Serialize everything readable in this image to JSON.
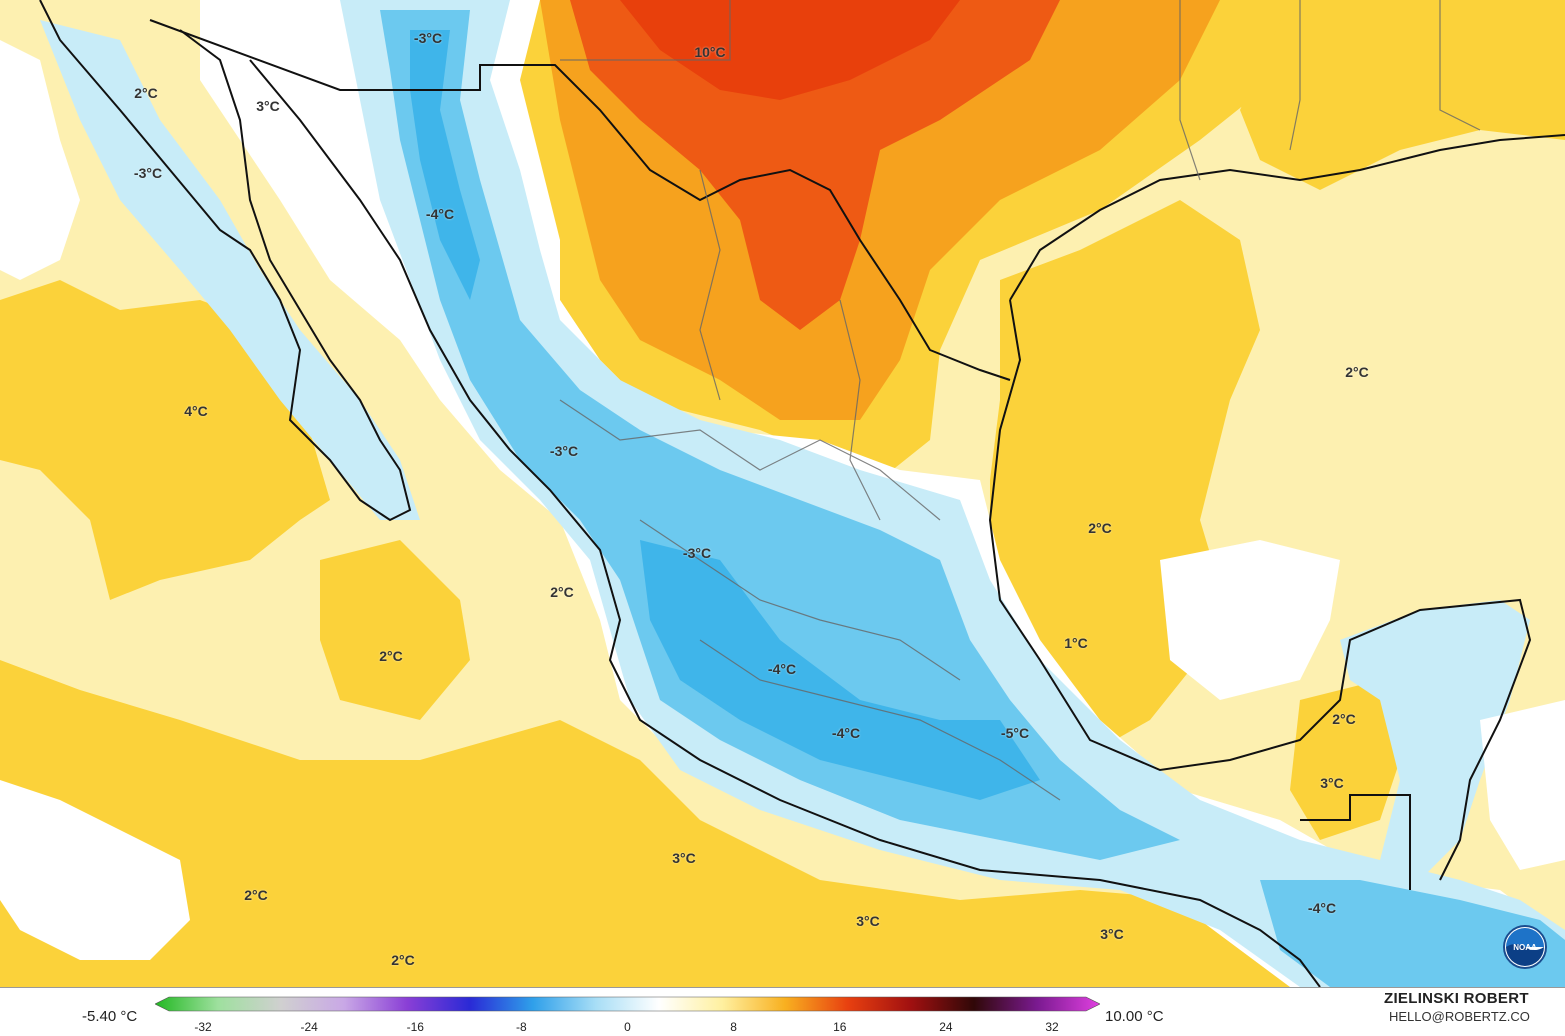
{
  "map": {
    "temperature_labels": [
      {
        "text": "-3°C"
      },
      {
        "text": "10°C"
      },
      {
        "text": "2°C"
      },
      {
        "text": "3°C"
      },
      {
        "text": "-3°C"
      },
      {
        "text": "-4°C"
      },
      {
        "text": "4°C"
      },
      {
        "text": "2°C"
      },
      {
        "text": "-3°C"
      },
      {
        "text": "2°C"
      },
      {
        "text": "-3°C"
      },
      {
        "text": "2°C"
      },
      {
        "text": "1°C"
      },
      {
        "text": "2°C"
      },
      {
        "text": "-4°C"
      },
      {
        "text": "-4°C"
      },
      {
        "text": "-5°C"
      },
      {
        "text": "2°C"
      },
      {
        "text": "3°C"
      },
      {
        "text": "3°C"
      },
      {
        "text": "2°C"
      },
      {
        "text": "3°C"
      },
      {
        "text": "-4°C"
      },
      {
        "text": "3°C"
      },
      {
        "text": "2°C"
      }
    ],
    "colors": {
      "warm_light": "#fdf0b0",
      "warm_yellow": "#fbd23a",
      "warm_orange": "#f6a21e",
      "warm_red": "#ee5a14",
      "cold_white": "#ffffff",
      "cold_light": "#c8ecf8",
      "cold_blue": "#6cc9ef",
      "cold_deep": "#3fb5ea"
    }
  },
  "legend": {
    "min_value": "-5.40 °C",
    "max_value": "10.00 °C",
    "ticks": [
      "-32",
      "-24",
      "-16",
      "-8",
      "0",
      "8",
      "16",
      "24",
      "32"
    ],
    "colorbar_stops": [
      "#22b822",
      "#9ee09e",
      "#d0d0d0",
      "#c9a8e6",
      "#8a3fd6",
      "#2a2ad6",
      "#2fa0ea",
      "#a8def6",
      "#ffffff",
      "#fff0a0",
      "#f8b020",
      "#e84010",
      "#a01010",
      "#300808",
      "#7a1a90",
      "#e040e0"
    ]
  },
  "credit": {
    "name": "ZIELINSKI ROBERT",
    "email": "HELLO@ROBERTZ.CO"
  },
  "logo": {
    "text": "NOAA",
    "icon": "noaa-logo"
  }
}
